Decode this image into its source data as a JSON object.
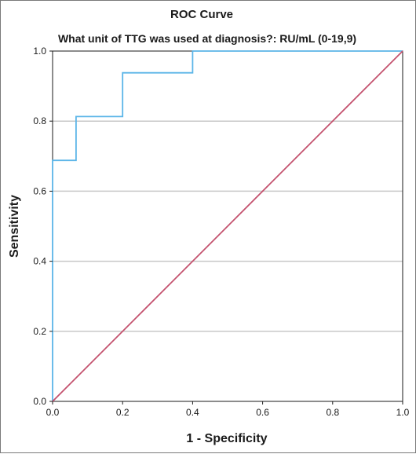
{
  "chart_data": {
    "type": "line",
    "title": "ROC Curve",
    "subtitle": "What unit of TTG was used at diagnosis?: RU/mL (0-19,9)",
    "xlabel": "1 - Specificity",
    "ylabel": "Sensitivity",
    "xlim": [
      0,
      1
    ],
    "ylim": [
      0,
      1
    ],
    "x_ticks": [
      "0.0",
      "0.2",
      "0.4",
      "0.6",
      "0.8",
      "1.0"
    ],
    "y_ticks": [
      "0.0",
      "0.2",
      "0.4",
      "0.6",
      "0.8",
      "1.0"
    ],
    "grid": "horizontal",
    "legend": "none",
    "series": [
      {
        "color": "#5bb5e8",
        "step": true,
        "points": [
          [
            0.0,
            0.0
          ],
          [
            0.0,
            0.688
          ],
          [
            0.067,
            0.688
          ],
          [
            0.067,
            0.813
          ],
          [
            0.2,
            0.813
          ],
          [
            0.2,
            0.938
          ],
          [
            0.4,
            0.938
          ],
          [
            0.4,
            1.0
          ],
          [
            1.0,
            1.0
          ]
        ]
      },
      {
        "color": "#c4516e",
        "step": false,
        "points": [
          [
            0.0,
            0.0
          ],
          [
            1.0,
            1.0
          ]
        ]
      }
    ]
  }
}
